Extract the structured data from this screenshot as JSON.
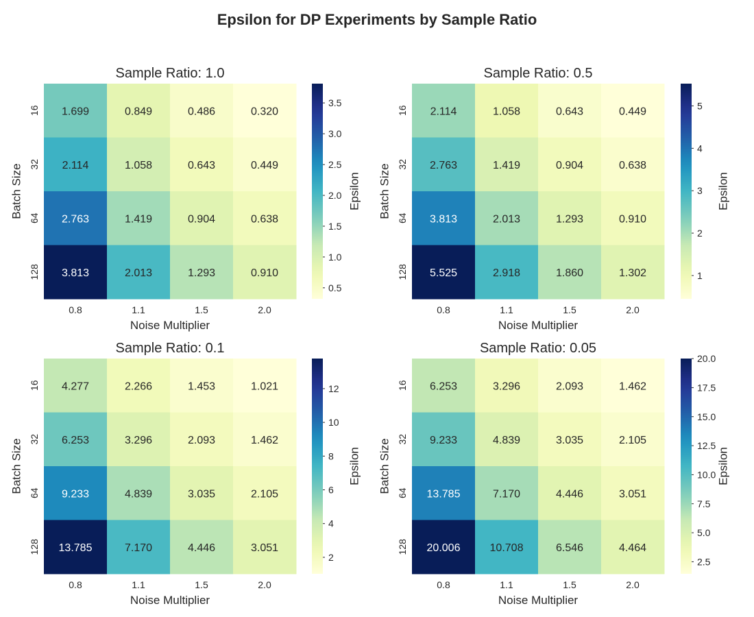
{
  "figure": {
    "title": "Epsilon for DP Experiments by Sample Ratio"
  },
  "chart_data": [
    {
      "type": "heatmap",
      "title": "Sample Ratio: 1.0",
      "xlabel": "Noise Multiplier",
      "ylabel": "Batch Size",
      "x_categories": [
        "0.8",
        "1.1",
        "1.5",
        "2.0"
      ],
      "y_categories": [
        "16",
        "32",
        "64",
        "128"
      ],
      "values": [
        [
          1.699,
          0.849,
          0.486,
          0.32
        ],
        [
          2.114,
          1.058,
          0.643,
          0.449
        ],
        [
          2.763,
          1.419,
          0.904,
          0.638
        ],
        [
          3.813,
          2.013,
          1.293,
          0.91
        ]
      ],
      "value_labels": [
        [
          "1.699",
          "0.849",
          "0.486",
          "0.320"
        ],
        [
          "2.114",
          "1.058",
          "0.643",
          "0.449"
        ],
        [
          "2.763",
          "1.419",
          "0.904",
          "0.638"
        ],
        [
          "3.813",
          "2.013",
          "1.293",
          "0.910"
        ]
      ],
      "colorbar": {
        "label": "Epsilon",
        "range": [
          0.32,
          3.813
        ],
        "ticks": [
          0.5,
          1.0,
          1.5,
          2.0,
          2.5,
          3.0,
          3.5
        ],
        "tick_labels": [
          "0.5",
          "1.0",
          "1.5",
          "2.0",
          "2.5",
          "3.0",
          "3.5"
        ]
      },
      "colormap": "YlGnBu"
    },
    {
      "type": "heatmap",
      "title": "Sample Ratio: 0.5",
      "xlabel": "Noise Multiplier",
      "ylabel": "Batch Size",
      "x_categories": [
        "0.8",
        "1.1",
        "1.5",
        "2.0"
      ],
      "y_categories": [
        "16",
        "32",
        "64",
        "128"
      ],
      "values": [
        [
          2.114,
          1.058,
          0.643,
          0.449
        ],
        [
          2.763,
          1.419,
          0.904,
          0.638
        ],
        [
          3.813,
          2.013,
          1.293,
          0.91
        ],
        [
          5.525,
          2.918,
          1.86,
          1.302
        ]
      ],
      "value_labels": [
        [
          "2.114",
          "1.058",
          "0.643",
          "0.449"
        ],
        [
          "2.763",
          "1.419",
          "0.904",
          "0.638"
        ],
        [
          "3.813",
          "2.013",
          "1.293",
          "0.910"
        ],
        [
          "5.525",
          "2.918",
          "1.860",
          "1.302"
        ]
      ],
      "colorbar": {
        "label": "Epsilon",
        "range": [
          0.449,
          5.525
        ],
        "ticks": [
          1,
          2,
          3,
          4,
          5
        ],
        "tick_labels": [
          "1",
          "2",
          "3",
          "4",
          "5"
        ]
      },
      "colormap": "YlGnBu"
    },
    {
      "type": "heatmap",
      "title": "Sample Ratio: 0.1",
      "xlabel": "Noise Multiplier",
      "ylabel": "Batch Size",
      "x_categories": [
        "0.8",
        "1.1",
        "1.5",
        "2.0"
      ],
      "y_categories": [
        "16",
        "32",
        "64",
        "128"
      ],
      "values": [
        [
          4.277,
          2.266,
          1.453,
          1.021
        ],
        [
          6.253,
          3.296,
          2.093,
          1.462
        ],
        [
          9.233,
          4.839,
          3.035,
          2.105
        ],
        [
          13.785,
          7.17,
          4.446,
          3.051
        ]
      ],
      "value_labels": [
        [
          "4.277",
          "2.266",
          "1.453",
          "1.021"
        ],
        [
          "6.253",
          "3.296",
          "2.093",
          "1.462"
        ],
        [
          "9.233",
          "4.839",
          "3.035",
          "2.105"
        ],
        [
          "13.785",
          "7.170",
          "4.446",
          "3.051"
        ]
      ],
      "colorbar": {
        "label": "Epsilon",
        "range": [
          1.021,
          13.785
        ],
        "ticks": [
          2,
          4,
          6,
          8,
          10,
          12
        ],
        "tick_labels": [
          "2",
          "4",
          "6",
          "8",
          "10",
          "12"
        ]
      },
      "colormap": "YlGnBu"
    },
    {
      "type": "heatmap",
      "title": "Sample Ratio: 0.05",
      "xlabel": "Noise Multiplier",
      "ylabel": "Batch Size",
      "x_categories": [
        "0.8",
        "1.1",
        "1.5",
        "2.0"
      ],
      "y_categories": [
        "16",
        "32",
        "64",
        "128"
      ],
      "values": [
        [
          6.253,
          3.296,
          2.093,
          1.462
        ],
        [
          9.233,
          4.839,
          3.035,
          2.105
        ],
        [
          13.785,
          7.17,
          4.446,
          3.051
        ],
        [
          20.006,
          10.708,
          6.546,
          4.464
        ]
      ],
      "value_labels": [
        [
          "6.253",
          "3.296",
          "2.093",
          "1.462"
        ],
        [
          "9.233",
          "4.839",
          "3.035",
          "2.105"
        ],
        [
          "13.785",
          "7.170",
          "4.446",
          "3.051"
        ],
        [
          "20.006",
          "10.708",
          "6.546",
          "4.464"
        ]
      ],
      "colorbar": {
        "label": "Epsilon",
        "range": [
          1.462,
          20.006
        ],
        "ticks": [
          2.5,
          5.0,
          7.5,
          10.0,
          12.5,
          15.0,
          17.5,
          20.0
        ],
        "tick_labels": [
          "2.5",
          "5.0",
          "7.5",
          "10.0",
          "12.5",
          "15.0",
          "17.5",
          "20.0"
        ]
      },
      "colormap": "YlGnBu"
    }
  ]
}
